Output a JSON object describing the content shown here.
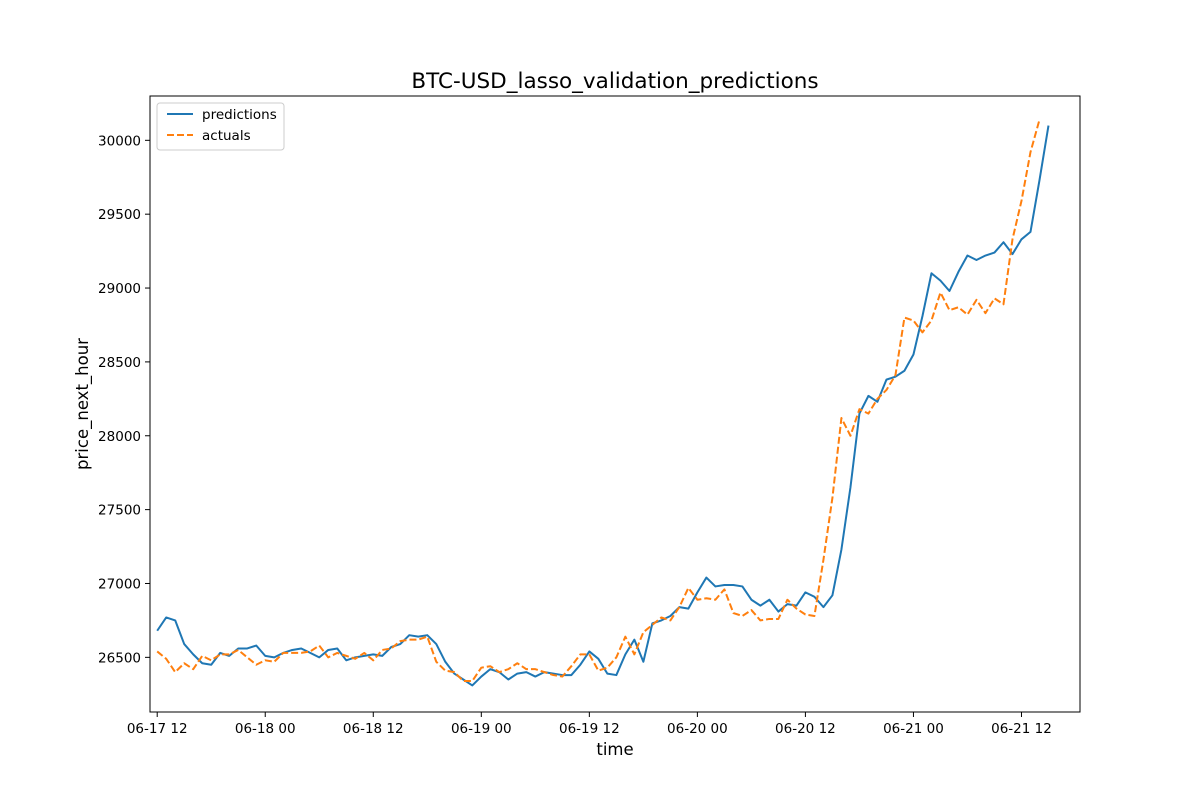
{
  "chart_data": {
    "type": "line",
    "title": "BTC-USD_lasso_validation_predictions",
    "xlabel": "time",
    "ylabel": "price_next_hour",
    "x_start": "2023-06-17 12:00",
    "x_step": "1 hour",
    "xlim": [
      "2023-06-17 11:12",
      "2023-06-21 18:30"
    ],
    "ylim": [
      26130,
      30300
    ],
    "xticks": [
      {
        "label": "06-17 12",
        "hour": 0
      },
      {
        "label": "06-18 00",
        "hour": 12
      },
      {
        "label": "06-18 12",
        "hour": 24
      },
      {
        "label": "06-19 00",
        "hour": 36
      },
      {
        "label": "06-19 12",
        "hour": 48
      },
      {
        "label": "06-20 00",
        "hour": 60
      },
      {
        "label": "06-20 12",
        "hour": 72
      },
      {
        "label": "06-21 00",
        "hour": 84
      },
      {
        "label": "06-21 12",
        "hour": 96
      }
    ],
    "yticks": [
      26500,
      27000,
      27500,
      28000,
      28500,
      29000,
      29500,
      30000
    ],
    "grid": false,
    "legend_position": "upper left",
    "series": [
      {
        "name": "predictions",
        "color": "#1f77b4",
        "style": "solid",
        "values": [
          26680,
          26770,
          26750,
          26590,
          26520,
          26460,
          26450,
          26530,
          26510,
          26560,
          26560,
          26580,
          26510,
          26500,
          26530,
          26550,
          26560,
          26530,
          26500,
          26550,
          26560,
          26480,
          26500,
          26510,
          26520,
          26510,
          26570,
          26590,
          26650,
          26640,
          26650,
          26590,
          26470,
          26390,
          26350,
          26310,
          26370,
          26420,
          26400,
          26350,
          26390,
          26400,
          26370,
          26400,
          26390,
          26380,
          26380,
          26450,
          26540,
          26490,
          26390,
          26380,
          26520,
          26620,
          26470,
          26730,
          26750,
          26780,
          26840,
          26830,
          26940,
          27040,
          26980,
          26990,
          26990,
          26980,
          26890,
          26850,
          26890,
          26810,
          26860,
          26850,
          26940,
          26910,
          26840,
          26920,
          27230,
          27650,
          28150,
          28270,
          28230,
          28380,
          28400,
          28440,
          28550,
          28810,
          29100,
          29050,
          28980,
          29110,
          29220,
          29190,
          29220,
          29240,
          29310,
          29230,
          29330,
          29380,
          29730,
          30100
        ]
      },
      {
        "name": "actuals",
        "color": "#ff7f0e",
        "style": "dashed",
        "values": [
          26540,
          26490,
          26400,
          26460,
          26420,
          26510,
          26480,
          26520,
          26520,
          26550,
          26500,
          26450,
          26480,
          26470,
          26530,
          26530,
          26530,
          26540,
          26580,
          26500,
          26530,
          26510,
          26490,
          26530,
          26480,
          26550,
          26560,
          26610,
          26620,
          26620,
          26640,
          26470,
          26410,
          26400,
          26340,
          26340,
          26430,
          26440,
          26400,
          26420,
          26460,
          26420,
          26420,
          26400,
          26380,
          26370,
          26440,
          26520,
          26520,
          26410,
          26430,
          26500,
          26640,
          26520,
          26670,
          26720,
          26770,
          26750,
          26840,
          26970,
          26890,
          26900,
          26890,
          26960,
          26800,
          26780,
          26820,
          26750,
          26760,
          26760,
          26890,
          26830,
          26790,
          26780,
          27160,
          27580,
          28120,
          28000,
          28180,
          28150,
          28250,
          28310,
          28410,
          28800,
          28780,
          28700,
          28780,
          28970,
          28850,
          28870,
          28820,
          28920,
          28830,
          28930,
          28890,
          29330,
          29590,
          29920,
          30140
        ]
      }
    ]
  }
}
